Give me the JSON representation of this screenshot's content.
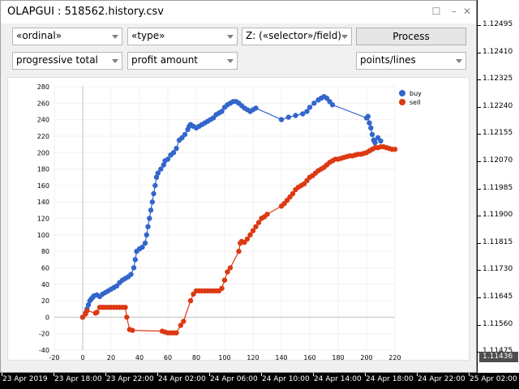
{
  "window": {
    "title": "OLAPGUI : 518562.history.csv"
  },
  "controls": {
    "row1": [
      {
        "value": "«ordinal»"
      },
      {
        "value": "«type»"
      },
      {
        "value": "Z: («selector»/field)"
      }
    ],
    "process_label": "Process",
    "row2": [
      {
        "value": "progressive total"
      },
      {
        "value": "profit amount"
      },
      {
        "value": "points/lines"
      }
    ]
  },
  "price_axis": {
    "labels": [
      "1.12495",
      "1.12410",
      "1.12325",
      "1.12240",
      "1.12155",
      "1.12070",
      "1.11985",
      "1.11900",
      "1.11815",
      "1.11730",
      "1.11645",
      "1.11560",
      "1.11475"
    ],
    "current": "1.11436"
  },
  "time_axis": {
    "labels": [
      "23 Apr 2019",
      "23 Apr 18:00",
      "23 Apr 22:00",
      "24 Apr 02:00",
      "24 Apr 06:00",
      "24 Apr 10:00",
      "24 Apr 14:00",
      "24 Apr 18:00",
      "24 Apr 22:00",
      "25 Apr 02:00"
    ]
  },
  "colors": {
    "buy": "#3366cc",
    "sell": "#dc3912"
  },
  "chart_data": {
    "type": "scatter",
    "xlim": [
      -20,
      220
    ],
    "ylim": [
      -40,
      280
    ],
    "x_ticks": [
      -20,
      0,
      20,
      40,
      60,
      80,
      100,
      120,
      140,
      160,
      180,
      200,
      220
    ],
    "y_ticks": [
      -40,
      -20,
      0,
      20,
      40,
      60,
      80,
      100,
      120,
      140,
      160,
      180,
      200,
      220,
      240,
      260,
      280
    ],
    "legend_position": "top-right",
    "series": [
      {
        "name": "buy",
        "connect": true,
        "points": [
          [
            0,
            0
          ],
          [
            2,
            5
          ],
          [
            3,
            10
          ],
          [
            4,
            15
          ],
          [
            5,
            20
          ],
          [
            6,
            22
          ],
          [
            7,
            24
          ],
          [
            8,
            26
          ],
          [
            10,
            27
          ],
          [
            12,
            25
          ],
          [
            14,
            28
          ],
          [
            16,
            30
          ],
          [
            18,
            32
          ],
          [
            20,
            34
          ],
          [
            22,
            36
          ],
          [
            24,
            38
          ],
          [
            26,
            42
          ],
          [
            28,
            45
          ],
          [
            30,
            47
          ],
          [
            32,
            49
          ],
          [
            34,
            52
          ],
          [
            36,
            60
          ],
          [
            37,
            70
          ],
          [
            38,
            80
          ],
          [
            40,
            83
          ],
          [
            42,
            85
          ],
          [
            44,
            90
          ],
          [
            45,
            100
          ],
          [
            46,
            110
          ],
          [
            47,
            120
          ],
          [
            48,
            130
          ],
          [
            49,
            140
          ],
          [
            50,
            150
          ],
          [
            51,
            160
          ],
          [
            52,
            170
          ],
          [
            53,
            175
          ],
          [
            55,
            180
          ],
          [
            57,
            185
          ],
          [
            58,
            190
          ],
          [
            60,
            192
          ],
          [
            62,
            197
          ],
          [
            64,
            200
          ],
          [
            66,
            205
          ],
          [
            68,
            215
          ],
          [
            70,
            218
          ],
          [
            72,
            222
          ],
          [
            74,
            228
          ],
          [
            75,
            232
          ],
          [
            76,
            234
          ],
          [
            78,
            232
          ],
          [
            80,
            230
          ],
          [
            82,
            232
          ],
          [
            84,
            234
          ],
          [
            86,
            236
          ],
          [
            88,
            238
          ],
          [
            90,
            240
          ],
          [
            92,
            242
          ],
          [
            94,
            246
          ],
          [
            96,
            248
          ],
          [
            98,
            250
          ],
          [
            100,
            255
          ],
          [
            102,
            258
          ],
          [
            104,
            260
          ],
          [
            106,
            262
          ],
          [
            108,
            262
          ],
          [
            110,
            260
          ],
          [
            112,
            257
          ],
          [
            114,
            254
          ],
          [
            116,
            252
          ],
          [
            118,
            250
          ],
          [
            120,
            252
          ],
          [
            122,
            254
          ],
          [
            140,
            240
          ],
          [
            145,
            243
          ],
          [
            150,
            245
          ],
          [
            155,
            247
          ],
          [
            158,
            250
          ],
          [
            160,
            255
          ],
          [
            163,
            260
          ],
          [
            166,
            264
          ],
          [
            168,
            266
          ],
          [
            170,
            268
          ],
          [
            172,
            266
          ],
          [
            174,
            262
          ],
          [
            176,
            258
          ],
          [
            200,
            242
          ],
          [
            201,
            244
          ],
          [
            202,
            236
          ],
          [
            203,
            230
          ],
          [
            204,
            222
          ],
          [
            205,
            215
          ],
          [
            206,
            212
          ],
          [
            208,
            218
          ],
          [
            210,
            214
          ]
        ]
      },
      {
        "name": "sell",
        "connect": true,
        "points": [
          [
            0,
            0
          ],
          [
            2,
            4
          ],
          [
            3,
            8
          ],
          [
            9,
            5
          ],
          [
            10,
            6
          ],
          [
            12,
            12
          ],
          [
            14,
            12
          ],
          [
            16,
            12
          ],
          [
            18,
            12
          ],
          [
            20,
            12
          ],
          [
            22,
            12
          ],
          [
            24,
            12
          ],
          [
            26,
            12
          ],
          [
            28,
            12
          ],
          [
            30,
            12
          ],
          [
            31,
            0
          ],
          [
            33,
            -15
          ],
          [
            35,
            -16
          ],
          [
            56,
            -17
          ],
          [
            58,
            -18
          ],
          [
            60,
            -19
          ],
          [
            62,
            -19
          ],
          [
            64,
            -19
          ],
          [
            66,
            -19
          ],
          [
            69,
            -10
          ],
          [
            71,
            -5
          ],
          [
            76,
            20
          ],
          [
            78,
            28
          ],
          [
            80,
            32
          ],
          [
            82,
            32
          ],
          [
            84,
            32
          ],
          [
            86,
            32
          ],
          [
            88,
            32
          ],
          [
            90,
            32
          ],
          [
            92,
            32
          ],
          [
            94,
            32
          ],
          [
            96,
            32
          ],
          [
            98,
            35
          ],
          [
            100,
            45
          ],
          [
            102,
            55
          ],
          [
            104,
            60
          ],
          [
            110,
            80
          ],
          [
            111,
            90
          ],
          [
            112,
            92
          ],
          [
            114,
            91
          ],
          [
            116,
            95
          ],
          [
            118,
            100
          ],
          [
            120,
            105
          ],
          [
            122,
            110
          ],
          [
            124,
            115
          ],
          [
            126,
            120
          ],
          [
            128,
            122
          ],
          [
            130,
            125
          ],
          [
            140,
            135
          ],
          [
            142,
            138
          ],
          [
            144,
            142
          ],
          [
            146,
            146
          ],
          [
            148,
            150
          ],
          [
            150,
            155
          ],
          [
            152,
            158
          ],
          [
            154,
            160
          ],
          [
            156,
            162
          ],
          [
            158,
            166
          ],
          [
            160,
            170
          ],
          [
            162,
            172
          ],
          [
            164,
            175
          ],
          [
            166,
            178
          ],
          [
            168,
            180
          ],
          [
            170,
            182
          ],
          [
            172,
            185
          ],
          [
            174,
            188
          ],
          [
            176,
            190
          ],
          [
            178,
            192
          ],
          [
            180,
            192
          ],
          [
            182,
            193
          ],
          [
            184,
            194
          ],
          [
            186,
            195
          ],
          [
            188,
            196
          ],
          [
            190,
            196
          ],
          [
            192,
            197
          ],
          [
            194,
            198
          ],
          [
            196,
            198
          ],
          [
            198,
            199
          ],
          [
            200,
            200
          ],
          [
            202,
            202
          ],
          [
            204,
            204
          ],
          [
            206,
            206
          ],
          [
            208,
            206
          ],
          [
            210,
            207
          ],
          [
            212,
            207
          ],
          [
            214,
            206
          ],
          [
            216,
            205
          ],
          [
            218,
            204
          ],
          [
            220,
            204
          ]
        ]
      }
    ]
  }
}
